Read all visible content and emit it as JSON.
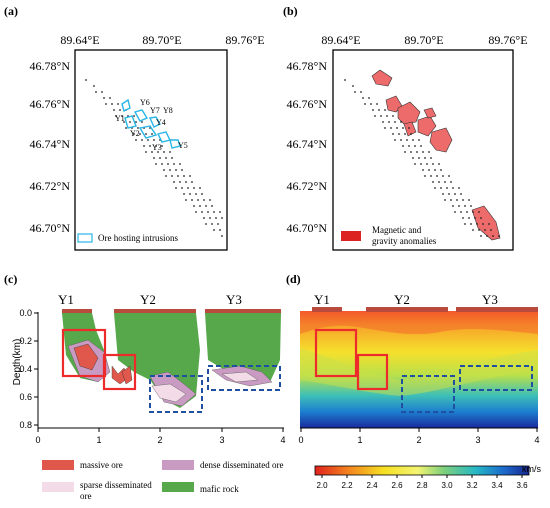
{
  "panels": {
    "a": {
      "label": "(a)",
      "lon_ticks": [
        "89.64°E",
        "89.70°E",
        "89.76°E"
      ],
      "lat_ticks": [
        "46.78°N",
        "46.76°N",
        "46.74°N",
        "46.72°N",
        "46.70°N"
      ],
      "legend": "Ore hosting intrusions",
      "intrusion_labels": [
        "Y6",
        "Y7",
        "Y8",
        "Y1",
        "Y4",
        "Y2",
        "Y3",
        "Y5"
      ]
    },
    "b": {
      "label": "(b)",
      "lon_ticks": [
        "89.64°E",
        "89.70°E",
        "89.76°E"
      ],
      "lat_ticks": [
        "46.78°N",
        "46.76°N",
        "46.74°N",
        "46.72°N",
        "46.70°N"
      ],
      "legend_line1": "Magnetic and",
      "legend_line2": "gravity anomalies"
    },
    "c": {
      "label": "(c)",
      "segments": [
        "Y1",
        "Y2",
        "Y3"
      ],
      "ylabel": "Depth(km)",
      "yticks": [
        "0.0",
        "0.2",
        "0.4",
        "0.6",
        "0.8"
      ],
      "xticks": [
        "0",
        "1",
        "2",
        "3",
        "4"
      ]
    },
    "d": {
      "label": "(d)",
      "segments": [
        "Y1",
        "Y2",
        "Y3"
      ],
      "xticks": [
        "0",
        "1",
        "2",
        "3",
        "4"
      ]
    }
  },
  "legend": {
    "massive": "massive ore",
    "dense": "dense disseminated ore",
    "sparse_line1": "sparse disseminated",
    "sparse_line2": "ore",
    "mafic": "mafic rock",
    "colorbar_ticks": [
      "2.0",
      "2.2",
      "2.4",
      "2.6",
      "2.8",
      "3.0",
      "3.2",
      "3.4",
      "3.6"
    ],
    "unit": "km/s"
  },
  "colors": {
    "massive": "#e0584b",
    "dense": "#c99bc3",
    "sparse": "#f3dbe8",
    "mafic": "#56a84a",
    "cyan": "#29b6e6",
    "anomaly": "#ee6b6b",
    "red_box": "#ee2b2b",
    "blue_box": "#1f4fa0",
    "profile_bar": "#b84a3e"
  }
}
